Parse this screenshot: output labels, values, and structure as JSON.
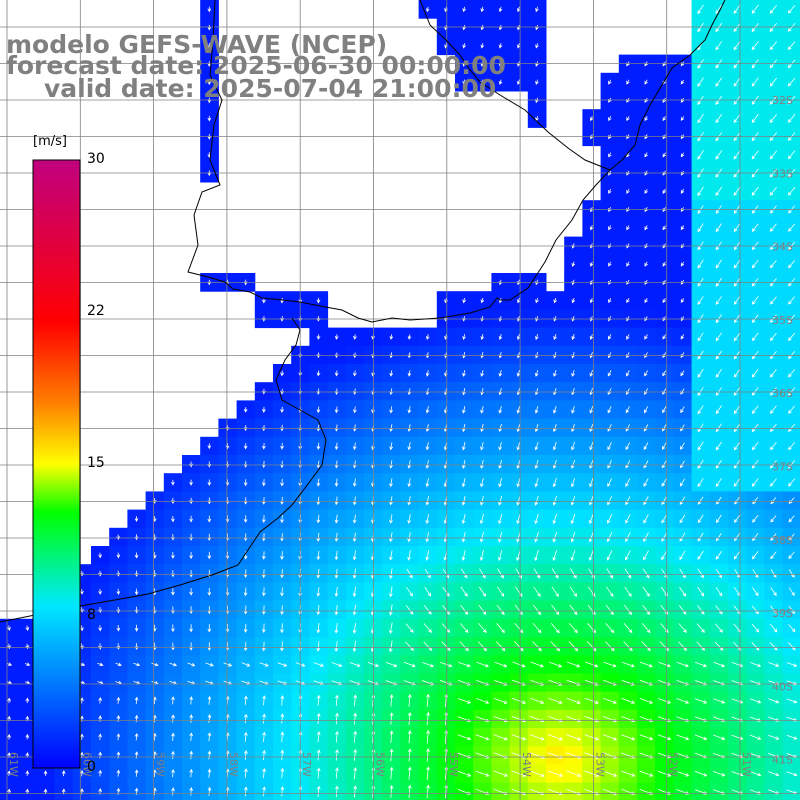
{
  "title": {
    "line1": "modelo GEFS-WAVE (NCEP)",
    "line2": "forecast date: 2025-06-30 00:00:00",
    "line3": "valid date: 2025-07-04 21:00:00"
  },
  "colorbar": {
    "unit": "[m/s]",
    "ticks": [
      "30",
      "22",
      "15",
      "8",
      "0"
    ],
    "tick_values": [
      30,
      22,
      15,
      8,
      0
    ],
    "range": [
      0,
      30
    ],
    "stops": [
      "#0000ff",
      "#00e8ff",
      "#00ff00",
      "#ffff00",
      "#ff8000",
      "#ff0000",
      "#c00080"
    ]
  },
  "map": {
    "region": "Rio de la Plata / southern Brazil coast",
    "variable": "wind speed and direction",
    "lat_labels_right": [
      "32S",
      "33S",
      "34S",
      "35S",
      "36S",
      "37S",
      "38S",
      "39S",
      "40S",
      "41S"
    ],
    "lon_labels_bottom": [
      "61W",
      "60W",
      "59W",
      "58W",
      "57W",
      "56W",
      "55W",
      "54W",
      "53W",
      "52W",
      "51W"
    ],
    "colors": {
      "land": "#ffffff",
      "coastline": "#000000",
      "grid": "#808080",
      "arrows": "#ffffff",
      "label": "#808080"
    }
  }
}
